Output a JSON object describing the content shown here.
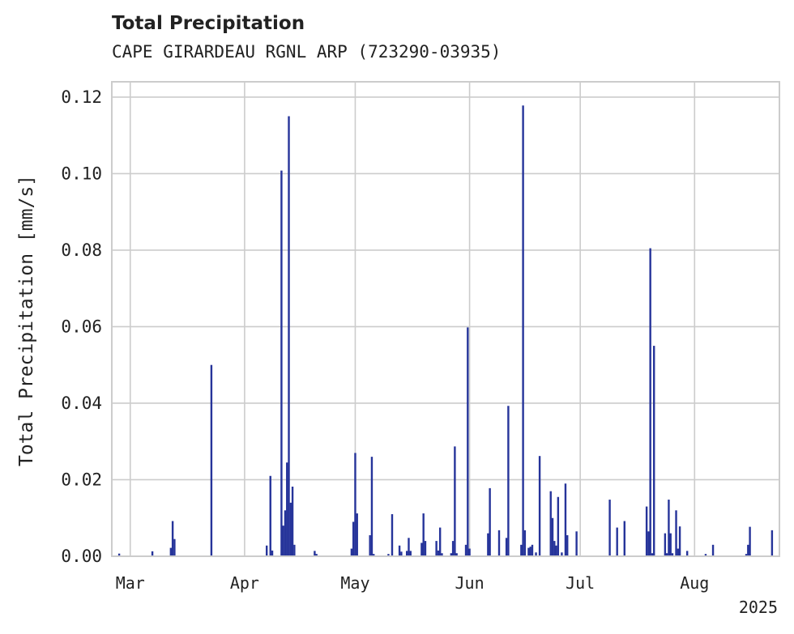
{
  "chart_data": {
    "type": "bar",
    "title": "Total Precipitation",
    "subtitle": "CAPE GIRARDEAU RGNL ARP (723290-03935)",
    "xlabel": "",
    "ylabel": "Total Precipitation [mm/s]",
    "ylim": [
      0,
      0.124
    ],
    "xlim": [
      "2025-02-24",
      "2025-08-24"
    ],
    "grid": true,
    "bar_color": "#26349a",
    "y_ticks": [
      {
        "value": 0,
        "label": "0.00"
      },
      {
        "value": 0.02,
        "label": "0.02"
      },
      {
        "value": 0.04,
        "label": "0.04"
      },
      {
        "value": 0.06,
        "label": "0.06"
      },
      {
        "value": 0.08,
        "label": "0.08"
      },
      {
        "value": 0.1,
        "label": "0.10"
      },
      {
        "value": 0.12,
        "label": "0.12"
      }
    ],
    "x_ticks": [
      {
        "date": "2025-03-01",
        "label": "Mar"
      },
      {
        "date": "2025-04-01",
        "label": "Apr"
      },
      {
        "date": "2025-05-01",
        "label": "May"
      },
      {
        "date": "2025-06-01",
        "label": "Jun"
      },
      {
        "date": "2025-07-01",
        "label": "Jul"
      },
      {
        "date": "2025-08-01",
        "label": "Aug"
      }
    ],
    "x_offset_label": "2025",
    "data": [
      {
        "x": "2025-02-26",
        "y": 0.0007
      },
      {
        "x": "2025-03-07",
        "y": 0.0013
      },
      {
        "x": "2025-03-12",
        "y": 0.0022
      },
      {
        "x": "2025-03-12T12:00",
        "y": 0.0092
      },
      {
        "x": "2025-03-13",
        "y": 0.0045
      },
      {
        "x": "2025-03-23",
        "y": 0.05
      },
      {
        "x": "2025-04-07",
        "y": 0.0028
      },
      {
        "x": "2025-04-08",
        "y": 0.021
      },
      {
        "x": "2025-04-08T12:00",
        "y": 0.0015
      },
      {
        "x": "2025-04-11",
        "y": 0.1008
      },
      {
        "x": "2025-04-11T12:00",
        "y": 0.008
      },
      {
        "x": "2025-04-12",
        "y": 0.012
      },
      {
        "x": "2025-04-12T12:00",
        "y": 0.0245
      },
      {
        "x": "2025-04-13",
        "y": 0.115
      },
      {
        "x": "2025-04-13T12:00",
        "y": 0.014
      },
      {
        "x": "2025-04-14",
        "y": 0.0182
      },
      {
        "x": "2025-04-14T12:00",
        "y": 0.003
      },
      {
        "x": "2025-04-20",
        "y": 0.0014
      },
      {
        "x": "2025-04-20T12:00",
        "y": 0.0006
      },
      {
        "x": "2025-04-30",
        "y": 0.002
      },
      {
        "x": "2025-04-30T12:00",
        "y": 0.009
      },
      {
        "x": "2025-05-01",
        "y": 0.027
      },
      {
        "x": "2025-05-01T12:00",
        "y": 0.0112
      },
      {
        "x": "2025-05-05",
        "y": 0.0055
      },
      {
        "x": "2025-05-05T12:00",
        "y": 0.026
      },
      {
        "x": "2025-05-06",
        "y": 0.0006
      },
      {
        "x": "2025-05-10",
        "y": 0.0006
      },
      {
        "x": "2025-05-11",
        "y": 0.011
      },
      {
        "x": "2025-05-13",
        "y": 0.0028
      },
      {
        "x": "2025-05-13T12:00",
        "y": 0.0012
      },
      {
        "x": "2025-05-15",
        "y": 0.0014
      },
      {
        "x": "2025-05-15T12:00",
        "y": 0.0048
      },
      {
        "x": "2025-05-16",
        "y": 0.0014
      },
      {
        "x": "2025-05-19",
        "y": 0.0035
      },
      {
        "x": "2025-05-19T12:00",
        "y": 0.0112
      },
      {
        "x": "2025-05-20",
        "y": 0.004
      },
      {
        "x": "2025-05-23",
        "y": 0.004
      },
      {
        "x": "2025-05-23T12:00",
        "y": 0.0015
      },
      {
        "x": "2025-05-24",
        "y": 0.0075
      },
      {
        "x": "2025-05-24T12:00",
        "y": 0.0008
      },
      {
        "x": "2025-05-27",
        "y": 0.0008
      },
      {
        "x": "2025-05-27T12:00",
        "y": 0.004
      },
      {
        "x": "2025-05-28",
        "y": 0.0287
      },
      {
        "x": "2025-05-28T12:00",
        "y": 0.0008
      },
      {
        "x": "2025-05-31",
        "y": 0.003
      },
      {
        "x": "2025-05-31T12:00",
        "y": 0.0598
      },
      {
        "x": "2025-06-01",
        "y": 0.002
      },
      {
        "x": "2025-06-06",
        "y": 0.006
      },
      {
        "x": "2025-06-06T12:00",
        "y": 0.0178
      },
      {
        "x": "2025-06-09",
        "y": 0.0068
      },
      {
        "x": "2025-06-11",
        "y": 0.0048
      },
      {
        "x": "2025-06-11T12:00",
        "y": 0.0393
      },
      {
        "x": "2025-06-15",
        "y": 0.003
      },
      {
        "x": "2025-06-15T12:00",
        "y": 0.1178
      },
      {
        "x": "2025-06-16",
        "y": 0.0068
      },
      {
        "x": "2025-06-17",
        "y": 0.0022
      },
      {
        "x": "2025-06-17T12:00",
        "y": 0.0025
      },
      {
        "x": "2025-06-18",
        "y": 0.003
      },
      {
        "x": "2025-06-19",
        "y": 0.001
      },
      {
        "x": "2025-06-20",
        "y": 0.0262
      },
      {
        "x": "2025-06-23",
        "y": 0.017
      },
      {
        "x": "2025-06-23T12:00",
        "y": 0.01
      },
      {
        "x": "2025-06-24",
        "y": 0.004
      },
      {
        "x": "2025-06-24T12:00",
        "y": 0.0028
      },
      {
        "x": "2025-06-25",
        "y": 0.0155
      },
      {
        "x": "2025-06-26",
        "y": 0.001
      },
      {
        "x": "2025-06-27",
        "y": 0.019
      },
      {
        "x": "2025-06-27T12:00",
        "y": 0.0055
      },
      {
        "x": "2025-06-30",
        "y": 0.0065
      },
      {
        "x": "2025-07-09",
        "y": 0.0148
      },
      {
        "x": "2025-07-11",
        "y": 0.0075
      },
      {
        "x": "2025-07-13",
        "y": 0.0092
      },
      {
        "x": "2025-07-19",
        "y": 0.013
      },
      {
        "x": "2025-07-19T12:00",
        "y": 0.0065
      },
      {
        "x": "2025-07-20",
        "y": 0.0805
      },
      {
        "x": "2025-07-20T12:00",
        "y": 0.0008
      },
      {
        "x": "2025-07-21",
        "y": 0.055
      },
      {
        "x": "2025-07-24",
        "y": 0.006
      },
      {
        "x": "2025-07-24T12:00",
        "y": 0.0008
      },
      {
        "x": "2025-07-25",
        "y": 0.0148
      },
      {
        "x": "2025-07-25T12:00",
        "y": 0.006
      },
      {
        "x": "2025-07-26",
        "y": 0.0008
      },
      {
        "x": "2025-07-27",
        "y": 0.012
      },
      {
        "x": "2025-07-27T12:00",
        "y": 0.002
      },
      {
        "x": "2025-07-28",
        "y": 0.0078
      },
      {
        "x": "2025-07-30",
        "y": 0.0014
      },
      {
        "x": "2025-08-04",
        "y": 0.0006
      },
      {
        "x": "2025-08-06",
        "y": 0.003
      },
      {
        "x": "2025-08-15",
        "y": 0.0006
      },
      {
        "x": "2025-08-15T12:00",
        "y": 0.003
      },
      {
        "x": "2025-08-16",
        "y": 0.0077
      },
      {
        "x": "2025-08-22",
        "y": 0.0068
      }
    ]
  }
}
